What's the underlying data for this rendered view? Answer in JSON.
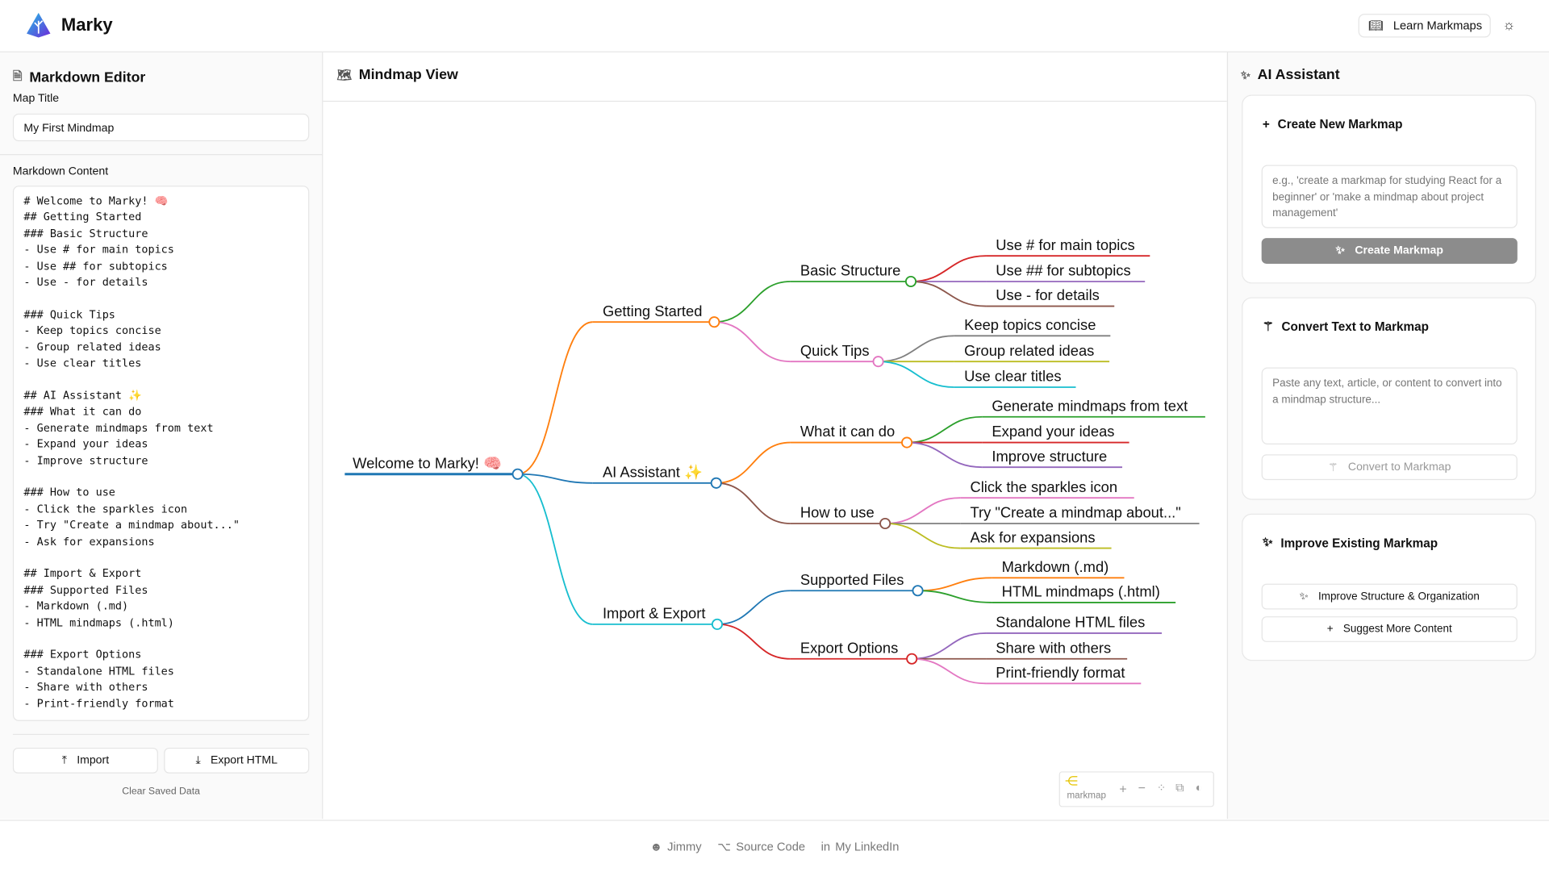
{
  "app": {
    "name": "Marky",
    "learn_label": "Learn Markmaps",
    "theme_icon": "sun-icon"
  },
  "editor": {
    "title": "Markdown Editor",
    "map_title_label": "Map Title",
    "map_title_value": "My First Mindmap",
    "content_label": "Markdown Content",
    "content": "# Welcome to Marky! 🧠\n## Getting Started\n### Basic Structure\n- Use # for main topics\n- Use ## for subtopics\n- Use - for details\n\n### Quick Tips\n- Keep topics concise\n- Group related ideas\n- Use clear titles\n\n## AI Assistant ✨\n### What it can do\n- Generate mindmaps from text\n- Expand your ideas\n- Improve structure\n\n### How to use\n- Click the sparkles icon\n- Try \"Create a mindmap about...\"\n- Ask for expansions\n\n## Import & Export\n### Supported Files\n- Markdown (.md)\n- HTML mindmaps (.html)\n\n### Export Options\n- Standalone HTML files\n- Share with others\n- Print-friendly format",
    "import_label": "Import",
    "export_label": "Export HTML",
    "clear_label": "Clear Saved Data"
  },
  "mindmap": {
    "title": "Mindmap View",
    "toolbar": {
      "brand": "markmap",
      "buttons": [
        "zoom-in",
        "zoom-out",
        "fit",
        "toggle-recursive",
        "dark-mode"
      ]
    },
    "colors": {
      "blue": "#1f77b4",
      "orange": "#ff7f0e",
      "green": "#2ca02c",
      "red": "#d62728",
      "purple": "#9467bd",
      "brown": "#8c564b",
      "pink": "#e377c2",
      "gray": "#7f7f7f",
      "olive": "#bcbd22",
      "cyan": "#17becf"
    },
    "tree": {
      "label": "Welcome to Marky! 🧠",
      "color": "blue",
      "children": [
        {
          "label": "Getting Started",
          "color": "orange",
          "children": [
            {
              "label": "Basic Structure",
              "color": "green",
              "children": [
                {
                  "label": "Use # for main topics",
                  "color": "red"
                },
                {
                  "label": "Use ## for subtopics",
                  "color": "purple"
                },
                {
                  "label": "Use - for details",
                  "color": "brown"
                }
              ]
            },
            {
              "label": "Quick Tips",
              "color": "pink",
              "children": [
                {
                  "label": "Keep topics concise",
                  "color": "gray"
                },
                {
                  "label": "Group related ideas",
                  "color": "olive"
                },
                {
                  "label": "Use clear titles",
                  "color": "cyan"
                }
              ]
            }
          ]
        },
        {
          "label": "AI Assistant ✨",
          "color": "blue",
          "children": [
            {
              "label": "What it can do",
              "color": "orange",
              "children": [
                {
                  "label": "Generate mindmaps from text",
                  "color": "green"
                },
                {
                  "label": "Expand your ideas",
                  "color": "red"
                },
                {
                  "label": "Improve structure",
                  "color": "purple"
                }
              ]
            },
            {
              "label": "How to use",
              "color": "brown",
              "children": [
                {
                  "label": "Click the sparkles icon",
                  "color": "pink"
                },
                {
                  "label": "Try \"Create a mindmap about...\"",
                  "color": "gray"
                },
                {
                  "label": "Ask for expansions",
                  "color": "olive"
                }
              ]
            }
          ]
        },
        {
          "label": "Import & Export",
          "color": "cyan",
          "children": [
            {
              "label": "Supported Files",
              "color": "blue",
              "children": [
                {
                  "label": "Markdown (.md)",
                  "color": "orange"
                },
                {
                  "label": "HTML mindmaps (.html)",
                  "color": "green"
                }
              ]
            },
            {
              "label": "Export Options",
              "color": "red",
              "children": [
                {
                  "label": "Standalone HTML files",
                  "color": "purple"
                },
                {
                  "label": "Share with others",
                  "color": "brown"
                },
                {
                  "label": "Print-friendly format",
                  "color": "pink"
                }
              ]
            }
          ]
        }
      ]
    }
  },
  "assistant": {
    "title": "AI Assistant",
    "create": {
      "title": "Create New Markmap",
      "placeholder": "e.g., 'create a markmap for studying React for a beginner' or 'make a mindmap about project management'",
      "button": "Create Markmap"
    },
    "convert": {
      "title": "Convert Text to Markmap",
      "placeholder": "Paste any text, article, or content to convert into a mindmap structure...",
      "button": "Convert to Markmap"
    },
    "improve": {
      "title": "Improve Existing Markmap",
      "button1": "Improve Structure & Organization",
      "button2": "Suggest More Content"
    }
  },
  "footer": {
    "items": [
      "Jimmy",
      "Source Code",
      "My LinkedIn"
    ]
  }
}
